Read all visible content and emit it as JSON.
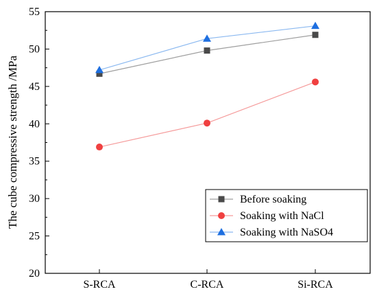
{
  "chart_data": {
    "type": "line",
    "categories": [
      "S-RCA",
      "C-RCA",
      "Si-RCA"
    ],
    "ylabel": "The cube compressive strength /MPa",
    "xlabel": "",
    "ylim": [
      20,
      55
    ],
    "yticks": [
      20,
      25,
      30,
      35,
      40,
      45,
      50,
      55
    ],
    "grid": false,
    "legend_position": "bottom-right",
    "series": [
      {
        "name": "Before soaking",
        "values": [
          46.7,
          49.8,
          51.9
        ],
        "marker": "square",
        "marker_color": "#4a4a4a",
        "line_color": "#9e9e9e"
      },
      {
        "name": "Soaking with NaCl",
        "values": [
          36.9,
          40.1,
          45.6
        ],
        "marker": "circle",
        "marker_color": "#f04040",
        "line_color": "#f59a9a"
      },
      {
        "name": "Soaking with NaSO4",
        "values": [
          47.2,
          51.4,
          53.1
        ],
        "marker": "triangle",
        "marker_color": "#1e6fe0",
        "line_color": "#8ab8f0"
      }
    ]
  }
}
